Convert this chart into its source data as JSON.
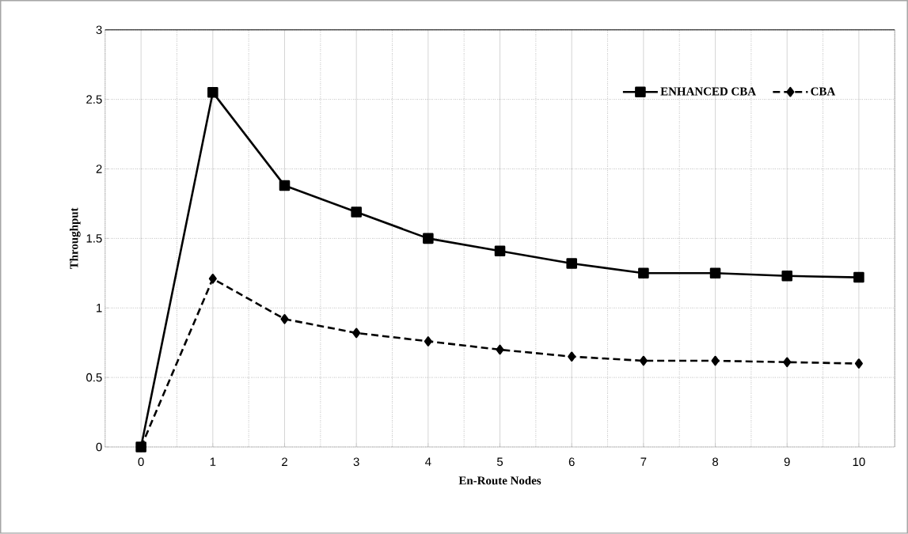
{
  "chart_data": {
    "type": "line",
    "xlabel": "En-Route Nodes",
    "ylabel": "Throughput",
    "categories": [
      "0",
      "1",
      "2",
      "3",
      "4",
      "5",
      "6",
      "7",
      "8",
      "9",
      "10"
    ],
    "series": [
      {
        "name": "ENHANCED CBA",
        "color": "#000000",
        "marker": "square",
        "line_style": "solid",
        "values": [
          0,
          2.55,
          1.88,
          1.69,
          1.5,
          1.41,
          1.32,
          1.25,
          1.25,
          1.23,
          1.22
        ]
      },
      {
        "name": "CBA",
        "color": "#000000",
        "marker": "diamond",
        "line_style": "dashed",
        "values": [
          0,
          1.21,
          0.92,
          0.82,
          0.76,
          0.7,
          0.65,
          0.62,
          0.62,
          0.61,
          0.6
        ]
      }
    ],
    "ylim": [
      0,
      3
    ],
    "yticks": [
      0,
      0.5,
      1,
      1.5,
      2,
      2.5,
      3
    ],
    "grid": true,
    "legend": "top right"
  }
}
